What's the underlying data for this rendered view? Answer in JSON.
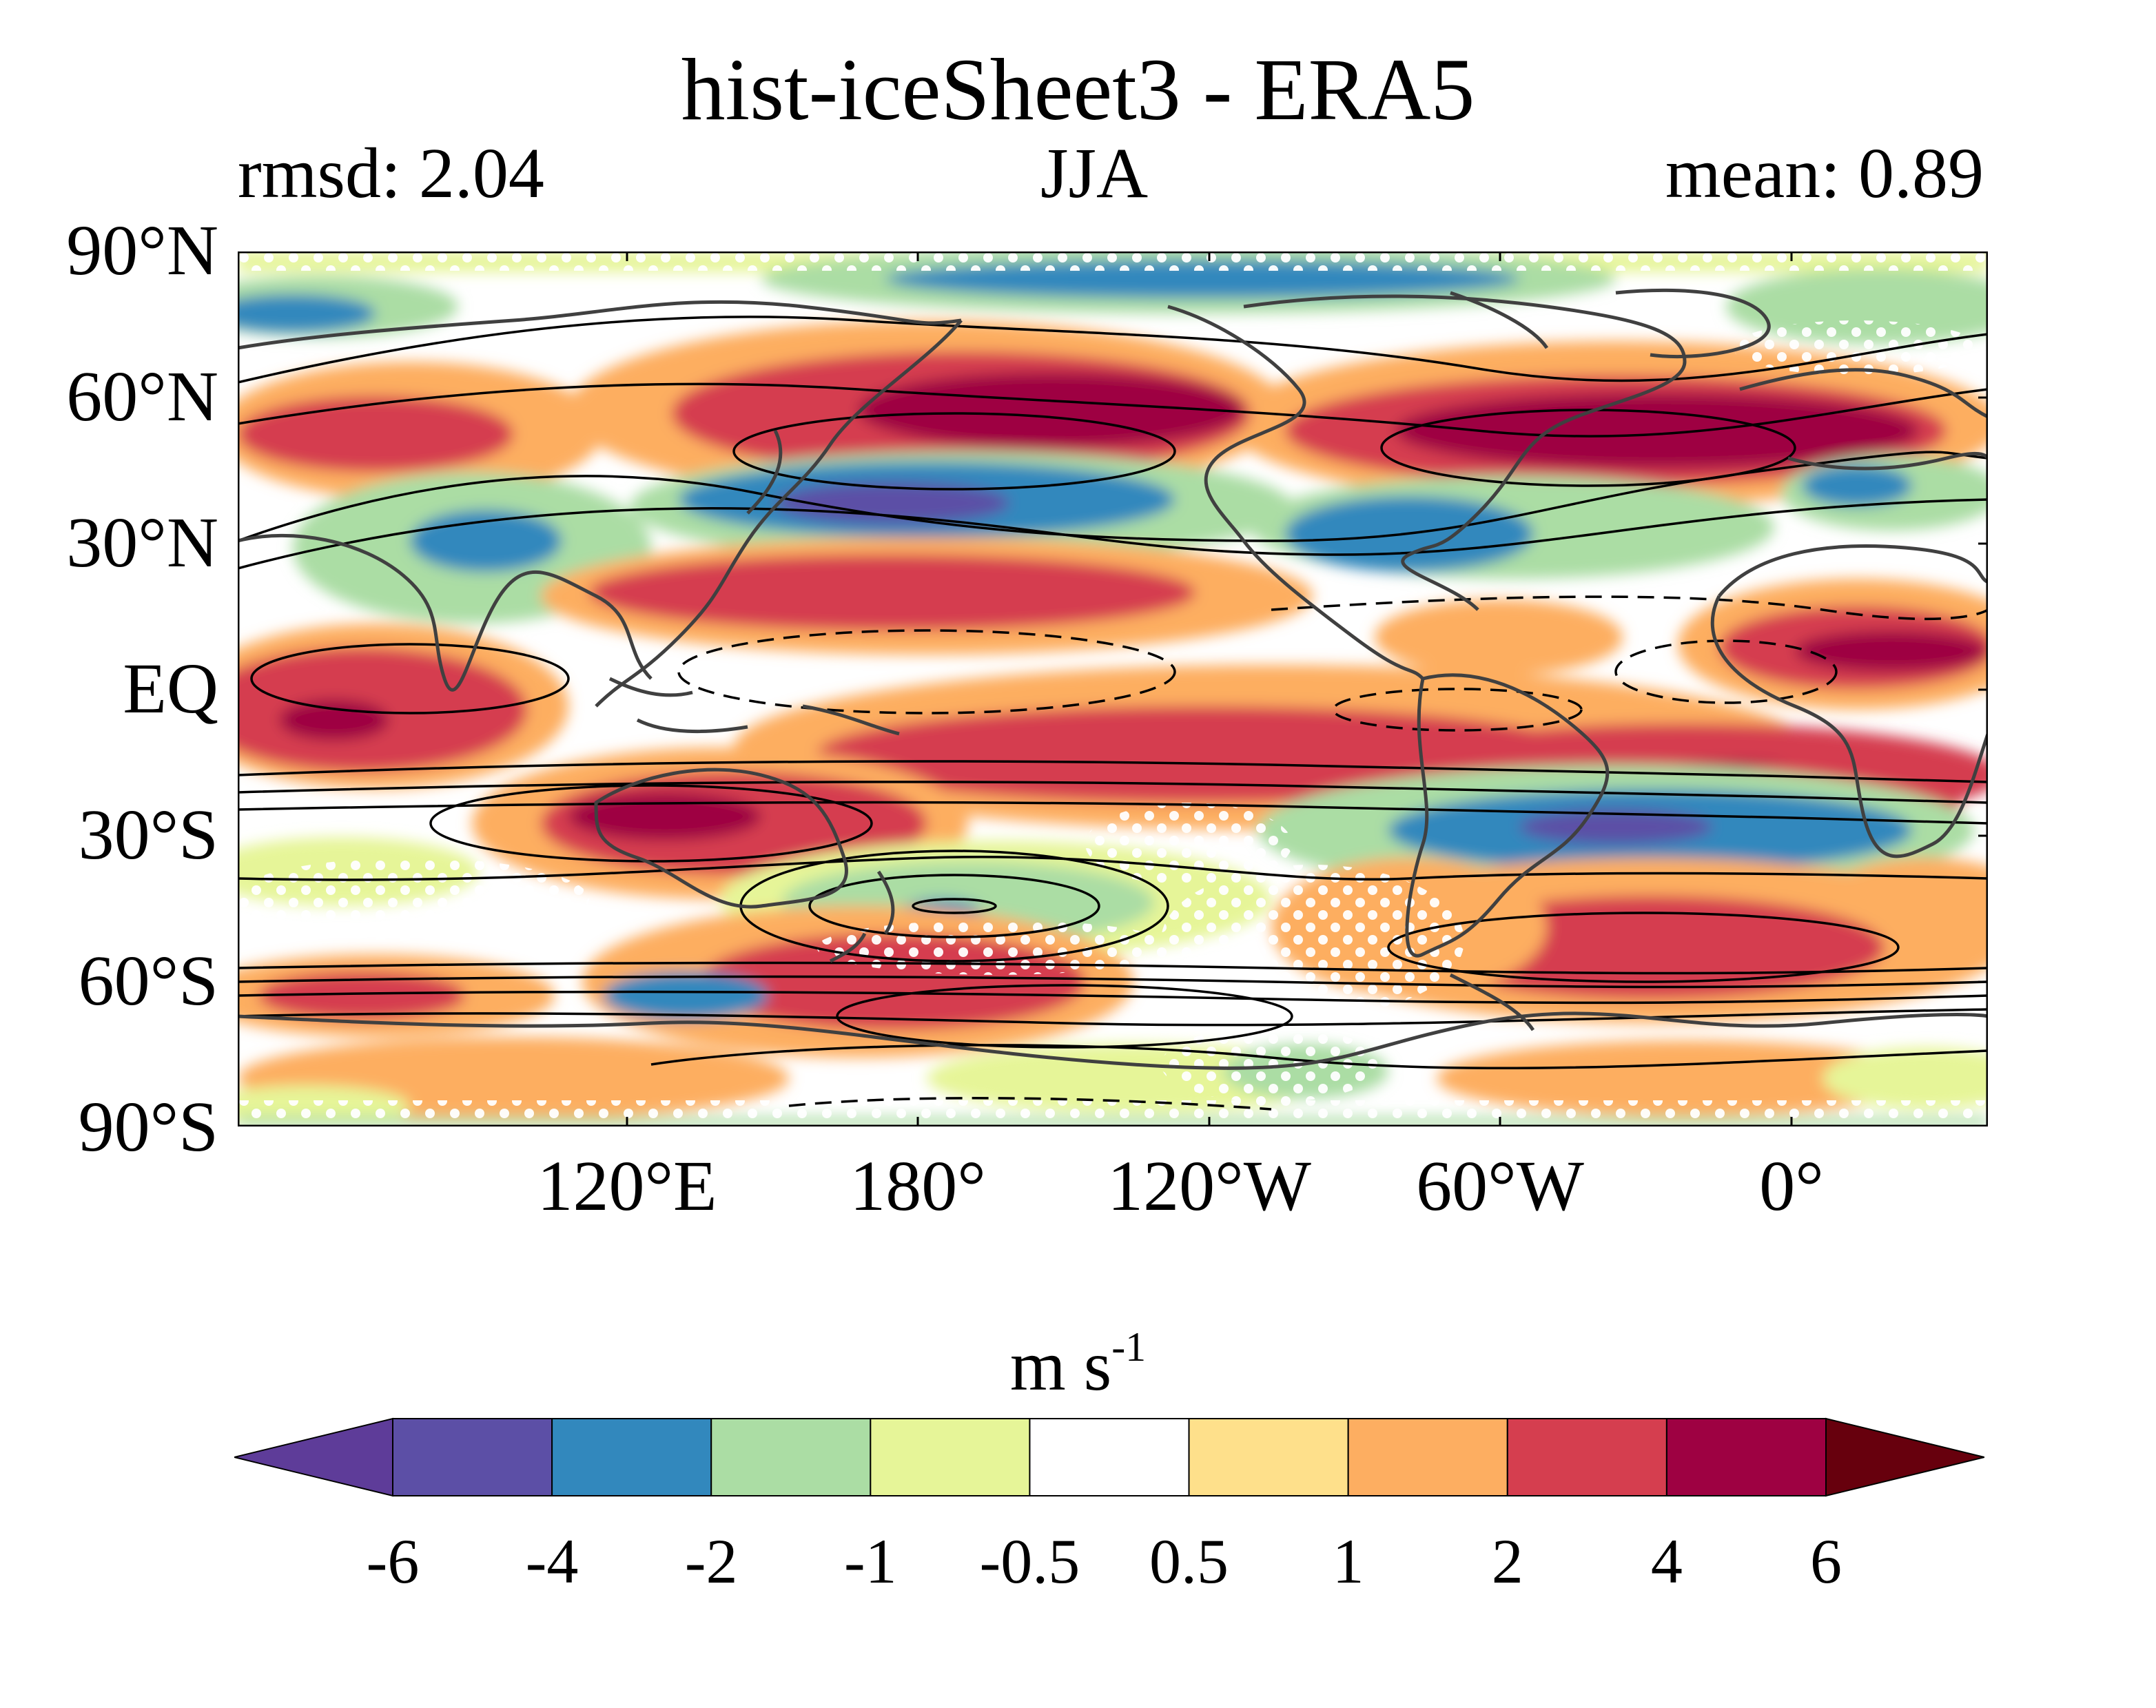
{
  "title": "hist-iceSheet3 - ERA5",
  "left_annotation": "rmsd: 2.04",
  "center_annotation": "JJA",
  "right_annotation": "mean: 0.89",
  "lat_ticks": [
    "90°N",
    "60°N",
    "30°N",
    "EQ",
    "30°S",
    "60°S",
    "90°S"
  ],
  "lon_ticks": [
    "120°E",
    "180°",
    "120°W",
    "60°W",
    "0°"
  ],
  "colorbar": {
    "unit": "m s",
    "unit_exponent": "-1",
    "tick_labels": [
      "-6",
      "-4",
      "-2",
      "-1",
      "-0.5",
      "0.5",
      "1",
      "2",
      "4",
      "6"
    ],
    "colors": [
      "#5e3c99",
      "#5c4fa6",
      "#3288bd",
      "#abdda4",
      "#e6f598",
      "#ffffff",
      "#fee08b",
      "#fdae61",
      "#d53e4f",
      "#9e0142",
      "#67000d"
    ]
  },
  "map": {
    "projection": "equirectangular",
    "stipple_color": "#ffffff",
    "contour_color": "#000000",
    "coastline_color": "#404040"
  }
}
